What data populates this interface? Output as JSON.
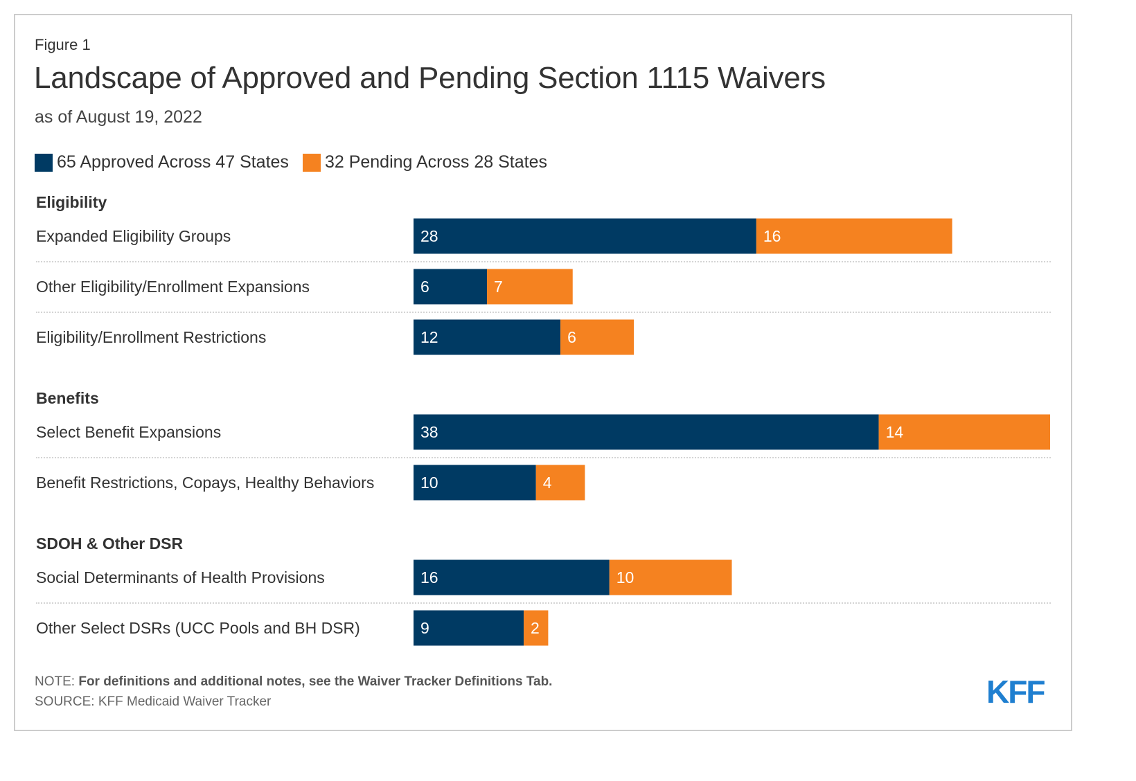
{
  "figure_label": "Figure 1",
  "title": "Landscape of Approved and Pending Section 1115 Waivers",
  "subtitle": "as of August 19, 2022",
  "legend": {
    "approved": "65 Approved Across 47 States",
    "pending": "32 Pending Across 28 States"
  },
  "colors": {
    "approved": "#003a63",
    "pending": "#f58220",
    "logo": "#1f7fd0"
  },
  "footer": {
    "note_prefix": "NOTE:",
    "note_text": "For definitions and additional notes, see the Waiver Tracker Definitions Tab.",
    "source": "SOURCE: KFF Medicaid Waiver Tracker",
    "logo": "KFF"
  },
  "chart_data": {
    "type": "bar",
    "orientation": "horizontal",
    "stacked": true,
    "groups": [
      "Eligibility",
      "Benefits",
      "SDOH & Other DSR"
    ],
    "categories": [
      "Expanded Eligibility Groups",
      "Other Eligibility/Enrollment Expansions",
      "Eligibility/Enrollment Restrictions",
      "Select Benefit Expansions",
      "Benefit Restrictions, Copays, Healthy Behaviors",
      "Social Determinants of Health Provisions",
      "Other Select DSRs (UCC Pools and BH DSR)"
    ],
    "category_groups": [
      0,
      0,
      0,
      1,
      1,
      2,
      2
    ],
    "series": [
      {
        "name": "65 Approved Across 47 States",
        "values": [
          28,
          6,
          12,
          38,
          10,
          16,
          9
        ]
      },
      {
        "name": "32 Pending Across 28 States",
        "values": [
          16,
          7,
          6,
          14,
          4,
          10,
          2
        ]
      }
    ],
    "xlim": [
      0,
      52
    ],
    "grid": false,
    "legend_position": "top-left"
  }
}
